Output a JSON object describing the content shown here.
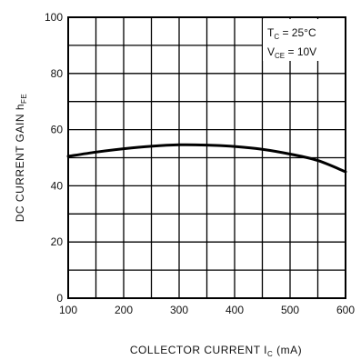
{
  "chart_data": {
    "type": "line",
    "xlabel": {
      "main": "COLLECTOR CURRENT I",
      "sub": "C",
      "unit": " (mA)"
    },
    "ylabel": {
      "main": "DC CURRENT GAIN h",
      "sub": "FE"
    },
    "xlim": [
      100,
      600
    ],
    "ylim": [
      0,
      100
    ],
    "xticks": [
      100,
      200,
      300,
      400,
      500,
      600
    ],
    "yticks": [
      0,
      20,
      40,
      60,
      80,
      100
    ],
    "x_minor_step": 50,
    "y_minor_step": 10,
    "grid": true,
    "annotations": [
      {
        "main": "T",
        "sub": "C",
        "rest": " = 25°C"
      },
      {
        "main": "V",
        "sub": "CE",
        "rest": " = 10V"
      }
    ],
    "series": [
      {
        "color": "#000000",
        "x": [
          100,
          150,
          200,
          250,
          300,
          350,
          400,
          450,
          500,
          550,
          600
        ],
        "y": [
          50.5,
          52,
          53.2,
          54.1,
          54.6,
          54.5,
          54.0,
          53.0,
          51.3,
          49.0,
          45.0
        ]
      }
    ]
  }
}
